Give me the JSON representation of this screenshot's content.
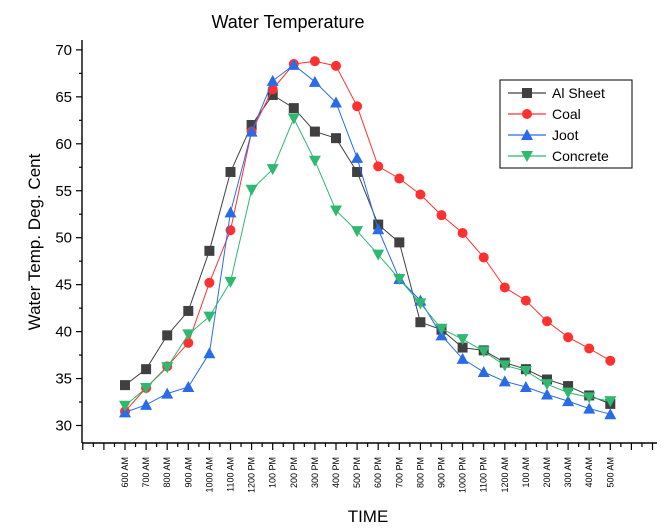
{
  "chart_data": {
    "type": "line",
    "title": "Water Temperature",
    "xlabel": "TIME",
    "ylabel": "Water Temp. Deg. Cent",
    "ylim": [
      29,
      72
    ],
    "yticks": [
      30,
      35,
      40,
      45,
      50,
      55,
      60,
      65,
      70
    ],
    "grid": false,
    "legend_position": "top-right",
    "categories": [
      "600 AM",
      "700 AM",
      "800 AM",
      "900 AM",
      "1000 AM",
      "1100 AM",
      "1200 PM",
      "100 PM",
      "200 PM",
      "300 PM",
      "400 PM",
      "500 PM",
      "600 PM",
      "700 PM",
      "800 PM",
      "900 PM",
      "1000 PM",
      "1100 PM",
      "1200 AM",
      "100 AM",
      "200 AM",
      "300 AM",
      "400 AM",
      "500 AM"
    ],
    "series": [
      {
        "name": "Al Sheet",
        "color": "#404040",
        "marker": "square",
        "values": [
          34.3,
          36.0,
          39.6,
          42.2,
          48.6,
          57.0,
          62.0,
          65.2,
          63.8,
          61.3,
          60.6,
          57.0,
          51.4,
          49.5,
          41.0,
          40.2,
          38.3,
          38.0,
          36.7,
          36.0,
          34.9,
          34.2,
          33.2,
          32.3
        ]
      },
      {
        "name": "Coal",
        "color": "#ff3030",
        "marker": "circle",
        "values": [
          31.5,
          34.0,
          36.3,
          38.8,
          45.2,
          50.8,
          61.3,
          65.8,
          68.5,
          68.8,
          68.3,
          64.0,
          57.6,
          56.3,
          54.6,
          52.4,
          50.5,
          47.9,
          44.7,
          43.3,
          41.1,
          39.4,
          38.2,
          36.9
        ]
      },
      {
        "name": "Joot",
        "color": "#2a6be8",
        "marker": "triangle-up",
        "values": [
          31.4,
          32.2,
          33.4,
          34.1,
          37.7,
          52.7,
          61.3,
          66.7,
          68.4,
          66.6,
          64.4,
          58.5,
          50.9,
          45.6,
          43.3,
          39.6,
          37.1,
          35.7,
          34.7,
          34.1,
          33.3,
          32.6,
          31.8,
          31.2
        ]
      },
      {
        "name": "Concrete",
        "color": "#2fb870",
        "marker": "triangle-down",
        "values": [
          32.1,
          34.0,
          36.2,
          39.7,
          41.6,
          45.3,
          55.1,
          57.3,
          62.7,
          58.2,
          52.9,
          50.7,
          48.2,
          45.6,
          43.0,
          40.3,
          39.2,
          37.9,
          36.4,
          35.8,
          34.4,
          33.5,
          33.0,
          32.6
        ]
      }
    ]
  }
}
